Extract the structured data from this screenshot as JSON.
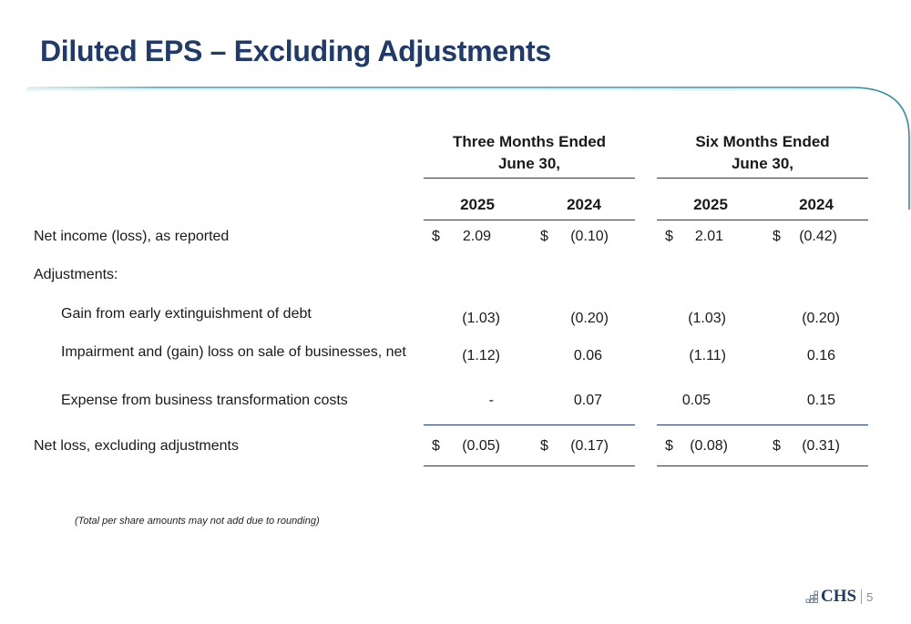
{
  "title": "Diluted EPS – Excluding Adjustments",
  "colors": {
    "title": "#1f3a6b",
    "accent_line": "#2e8fa0",
    "rule": "#1f3a6b"
  },
  "columns": {
    "group1": {
      "line1": "Three Months Ended",
      "line2": "June 30,",
      "years": [
        "2025",
        "2024"
      ]
    },
    "group2": {
      "line1": "Six Months Ended",
      "line2": "June 30,",
      "years": [
        "2025",
        "2024"
      ]
    }
  },
  "rows": [
    {
      "label": "Net income (loss), as reported",
      "dollar": true,
      "values": [
        "2.09",
        "(0.10)",
        "2.01",
        "(0.42)"
      ]
    },
    {
      "label": "Adjustments:",
      "dollar": false,
      "values": [
        "",
        "",
        "",
        ""
      ]
    },
    {
      "label": "Gain from early extinguishment of debt",
      "dollar": false,
      "values": [
        "(1.03)",
        "(0.20)",
        "(1.03)",
        "(0.20)"
      ]
    },
    {
      "label": "Impairment and (gain) loss on sale of businesses, net",
      "dollar": false,
      "values": [
        "(1.12)",
        "0.06",
        "(1.11)",
        "0.16"
      ]
    },
    {
      "label": "Expense from business transformation costs",
      "dollar": false,
      "values": [
        "-",
        "0.07",
        "0.05",
        "0.15"
      ]
    },
    {
      "label": "Net loss, excluding adjustments",
      "dollar": true,
      "values": [
        "(0.05)",
        "(0.17)",
        "(0.08)",
        "(0.31)"
      ]
    }
  ],
  "dollar_sign": "$",
  "footnote": "(Total per share amounts may not add due to rounding)",
  "logo": {
    "text": "CHS",
    "icon": "chs-logo-mark-icon"
  },
  "page_number": "5"
}
